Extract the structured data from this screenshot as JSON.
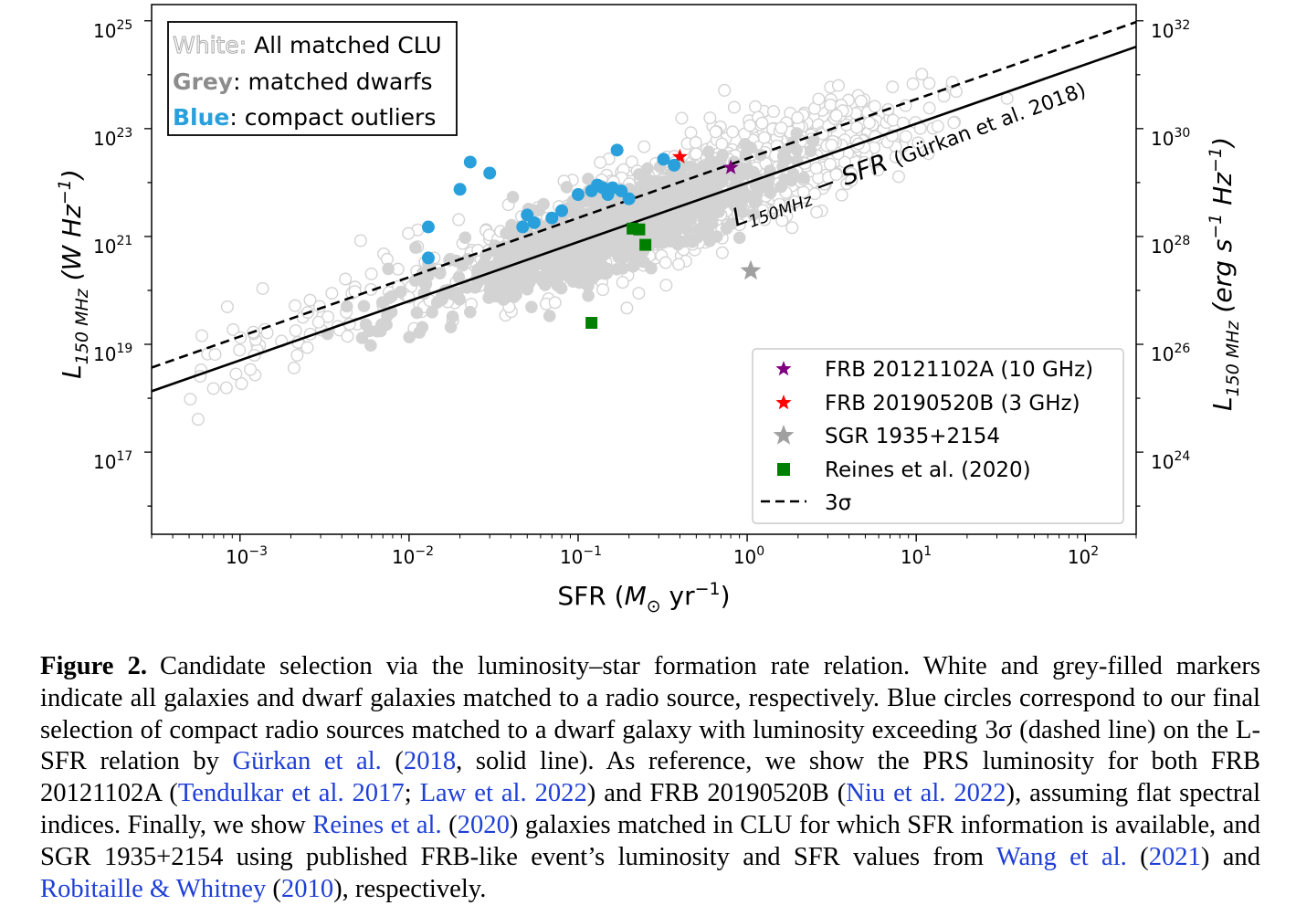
{
  "chart_data": {
    "type": "scatter",
    "xlabel": "SFR (M⊙ yr⁻¹)",
    "ylabel_left": "L150 MHz (W Hz⁻¹)",
    "ylabel_right": "L150 MHz (erg s⁻¹ Hz⁻¹)",
    "x_scale": "log",
    "y_scale": "log",
    "xlim": [
      0.0003,
      200
    ],
    "ylim": [
      3000000000000000.0,
      2e+25
    ],
    "x_ticks": [
      "10⁻³",
      "10⁻²",
      "10⁻¹",
      "10⁰",
      "10¹",
      "10²"
    ],
    "y_ticks_left": [
      "10¹⁷",
      "10¹⁹",
      "10²¹",
      "10²³",
      "10²⁵"
    ],
    "y_ticks_right": [
      "10²⁴",
      "10²⁶",
      "10²⁸",
      "10³⁰",
      "10³²"
    ],
    "grid": false,
    "text_box": {
      "white_label": "White:",
      "white_text": " All matched CLU",
      "grey_label": "Grey",
      "grey_text": ": matched dwarfs",
      "blue_label": "Blue",
      "blue_text": ": compact outliers"
    },
    "relation_label": "L150MHz − SFR (Gürkan et al. 2018)",
    "legend": {
      "placement": "lower-right",
      "entries": [
        "FRB 20121102A (10 GHz)",
        "FRB 20190520B (3 GHz)",
        "SGR 1935+2154",
        "Reines et al. (2020)",
        "3σ"
      ]
    },
    "lines": [
      {
        "name": "Gürkan et al. 2018",
        "style": "solid",
        "x": [
          0.0003,
          200
        ],
        "y": [
          1.35e+18,
          3.3e+24
        ]
      },
      {
        "name": "3σ",
        "style": "dashed",
        "x": [
          0.0003,
          200
        ],
        "y": [
          3.7e+18,
          9.5e+24
        ]
      }
    ],
    "series": [
      {
        "name": "FRB 20121102A (10 GHz)",
        "marker": "star",
        "color": "#800080",
        "points": [
          [
            0.8,
            1.9e+22
          ]
        ]
      },
      {
        "name": "FRB 20190520B (3 GHz)",
        "marker": "star",
        "color": "#ff0000",
        "points": [
          [
            0.4,
            3e+22
          ]
        ]
      },
      {
        "name": "SGR 1935+2154",
        "marker": "star",
        "color": "#a0a0a0",
        "points": [
          [
            1.05,
            2.3e+20
          ]
        ]
      },
      {
        "name": "Reines et al. (2020)",
        "marker": "square",
        "color": "#008000",
        "points": [
          [
            0.12,
            2.5e+19
          ],
          [
            0.21,
            1.4e+21
          ],
          [
            0.23,
            1.35e+21
          ],
          [
            0.25,
            7e+20
          ]
        ]
      },
      {
        "name": "compact outliers",
        "marker": "circle",
        "color": "#29a0dc",
        "points": [
          [
            0.013,
            4e+20
          ],
          [
            0.013,
            1.5e+21
          ],
          [
            0.02,
            7.5e+21
          ],
          [
            0.023,
            2.4e+22
          ],
          [
            0.03,
            1.5e+22
          ],
          [
            0.047,
            1.5e+21
          ],
          [
            0.05,
            2.5e+21
          ],
          [
            0.055,
            1.8e+21
          ],
          [
            0.07,
            2.2e+21
          ],
          [
            0.08,
            3e+21
          ],
          [
            0.1,
            6e+21
          ],
          [
            0.12,
            7e+21
          ],
          [
            0.13,
            9e+21
          ],
          [
            0.14,
            8e+21
          ],
          [
            0.15,
            6e+21
          ],
          [
            0.17,
            4e+22
          ],
          [
            0.16,
            8e+21
          ],
          [
            0.18,
            7e+21
          ],
          [
            0.2,
            5e+21
          ],
          [
            0.32,
            2.7e+22
          ],
          [
            0.37,
            2.1e+22
          ]
        ]
      }
    ]
  },
  "caption": {
    "label": "Figure 2.",
    "t1": "Candidate selection via the luminosity–star formation rate relation. White and grey-filled markers indicate all galaxies and dwarf galaxies matched to a radio source, respectively. Blue circles correspond to our final selection of compact radio sources matched to a dwarf galaxy with luminosity exceeding 3σ (dashed line) on the L-SFR relation by ",
    "r1": "Gürkan et al.",
    "t2": " (",
    "r2": "2018",
    "t3": ", solid line). As reference, we show the PRS luminosity for both FRB 20121102A (",
    "r3": "Tendulkar et al. 2017",
    "t4": "; ",
    "r4": "Law et al. 2022",
    "t5": ") and FRB 20190520B (",
    "r5": "Niu et al. 2022",
    "t6": "), assuming flat spectral indices. Finally, we show ",
    "r6": "Reines et al.",
    "t7": " (",
    "r7": "2020",
    "t8": ") galaxies matched in CLU for which SFR information is available, and SGR 1935+2154 using published FRB-like event’s luminosity and SFR values from ",
    "r8": "Wang et al.",
    "t9": " (",
    "r9": "2021",
    "t10": ") and ",
    "r10": "Robitaille & Whitney",
    "t11": " (",
    "r11": "2010",
    "t12": "), respectively."
  }
}
